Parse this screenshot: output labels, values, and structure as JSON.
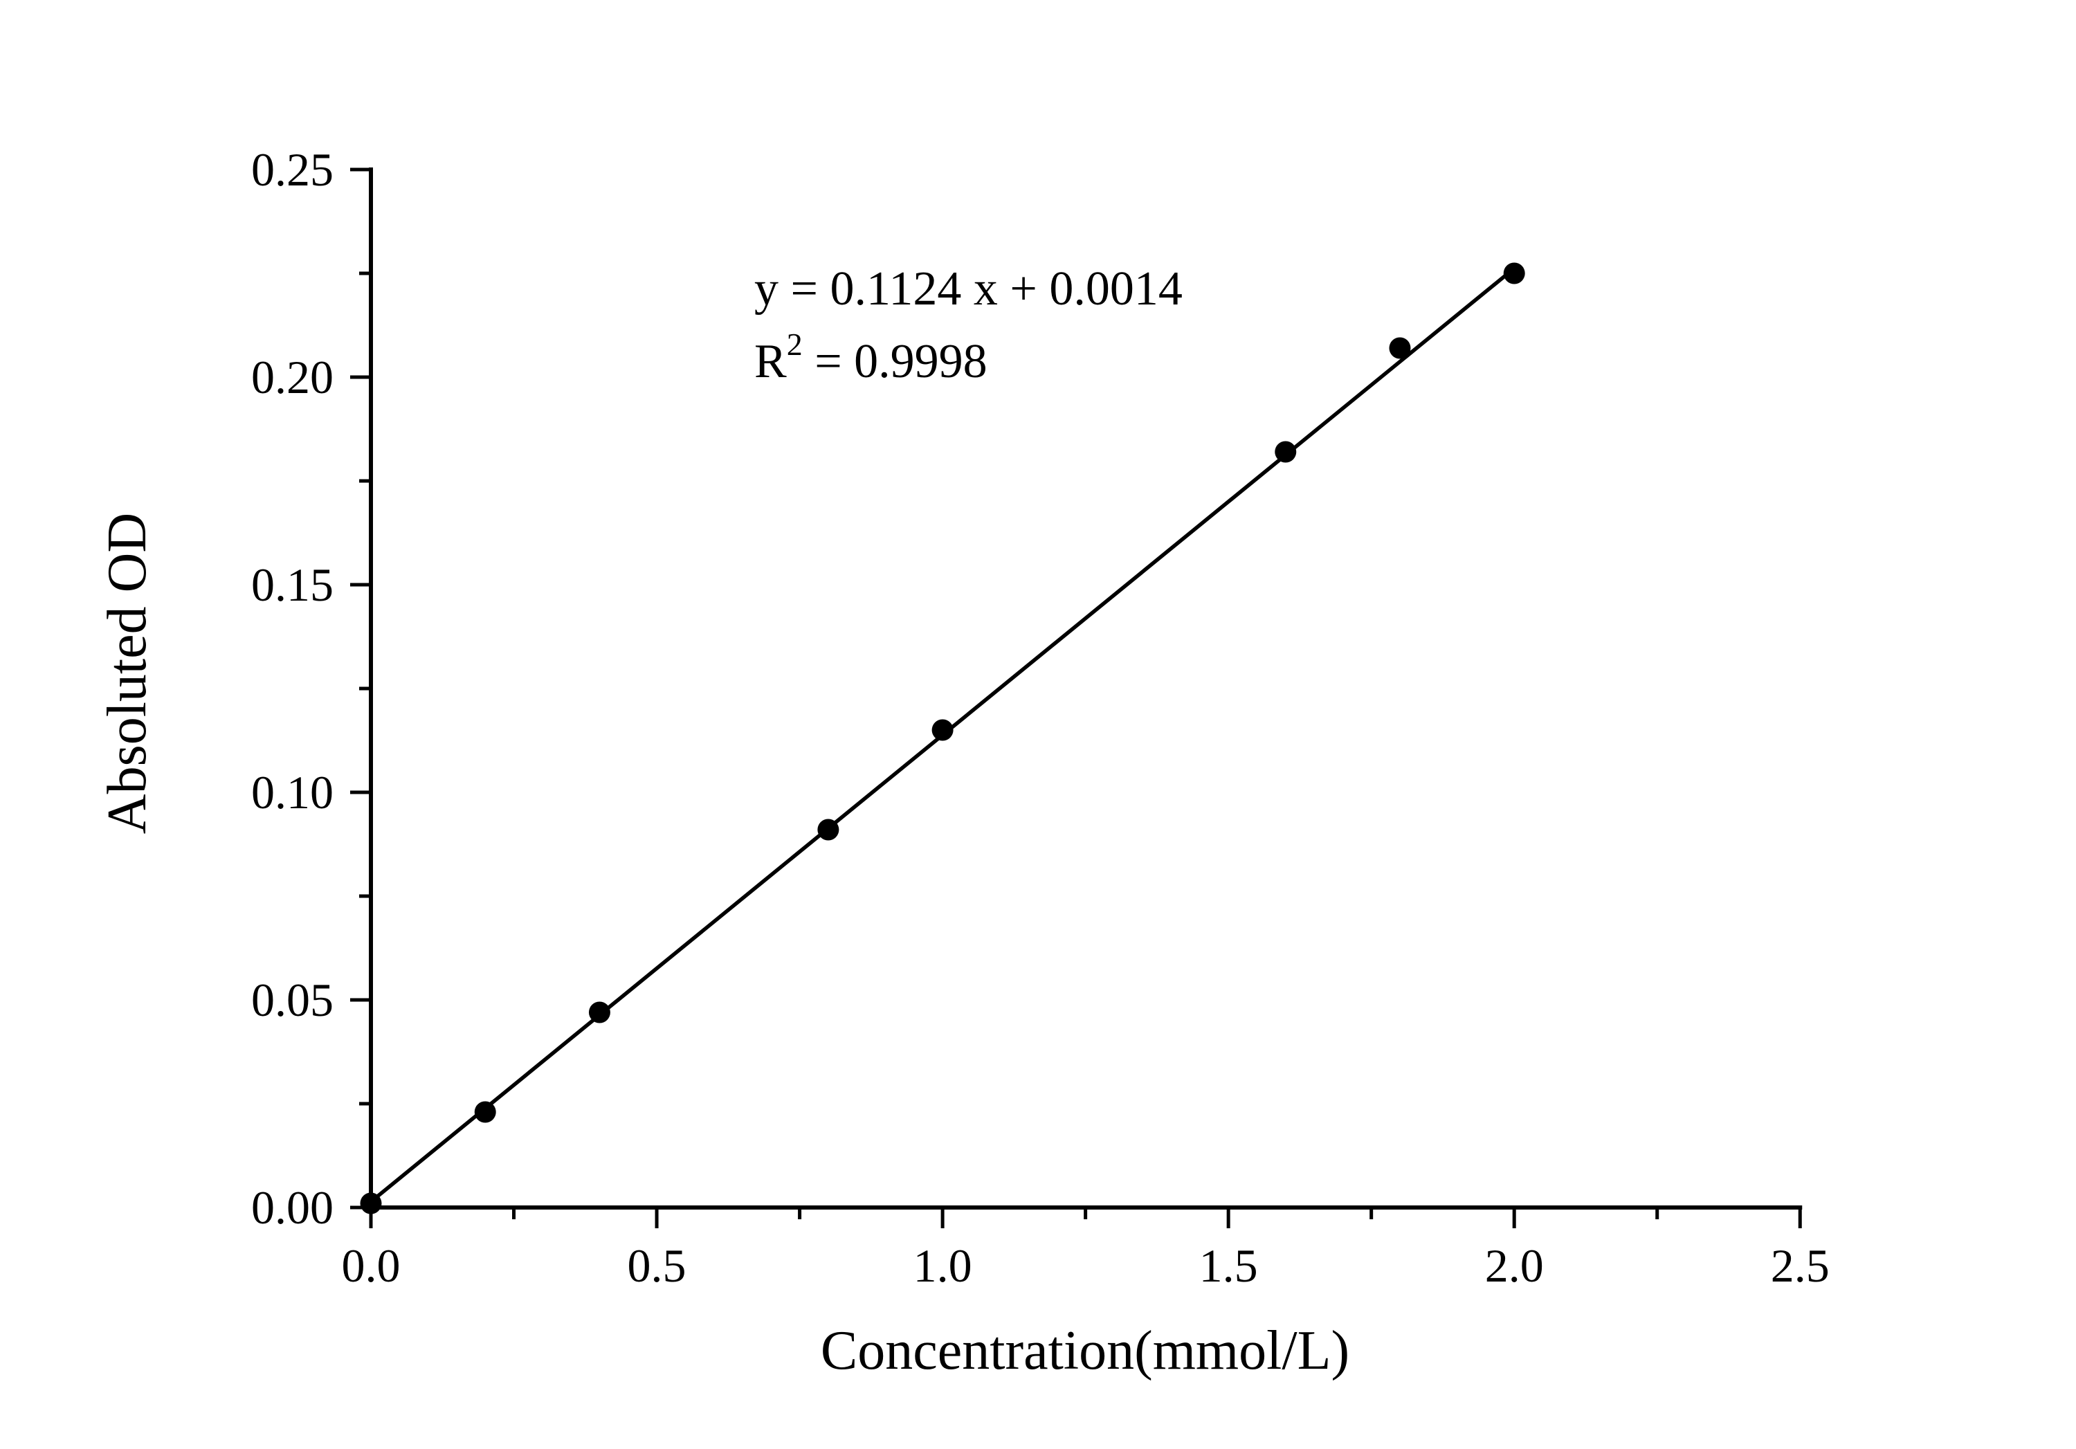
{
  "figure": {
    "background": "#ffffff",
    "foreground": "#000000"
  },
  "chart_data": {
    "type": "scatter",
    "title": "",
    "xlabel": "Concentration(mmol/L)",
    "ylabel": "Absoluted OD",
    "xlim": [
      0.0,
      2.5
    ],
    "ylim": [
      0.0,
      0.25
    ],
    "grid": false,
    "legend": "none",
    "x_major_ticks": {
      "values": [
        0.0,
        0.5,
        1.0,
        1.5,
        2.0,
        2.5
      ],
      "labels": [
        "0.0",
        "0.5",
        "1.0",
        "1.5",
        "2.0",
        "2.5"
      ]
    },
    "x_minor_step": 0.25,
    "y_major_ticks": {
      "values": [
        0.0,
        0.05,
        0.1,
        0.15,
        0.2,
        0.25
      ],
      "labels": [
        "0.00",
        "0.05",
        "0.10",
        "0.15",
        "0.20",
        "0.25"
      ]
    },
    "y_minor_step": 0.025,
    "series": [
      {
        "name": "standard-points",
        "marker": "filled-circle",
        "color": "#000000",
        "points": [
          [
            0.0,
            0.001
          ],
          [
            0.2,
            0.023
          ],
          [
            0.4,
            0.047
          ],
          [
            0.8,
            0.091
          ],
          [
            1.0,
            0.115
          ],
          [
            1.6,
            0.182
          ],
          [
            1.8,
            0.207
          ],
          [
            2.0,
            0.225
          ]
        ]
      }
    ],
    "fit": {
      "slope": 0.1124,
      "intercept": 0.0014,
      "r_squared": 0.9998,
      "x_range": [
        0.0,
        2.0
      ],
      "color": "#000000"
    },
    "annotation": {
      "line1": "y = 0.1124 x + 0.0014",
      "line2_base": "R",
      "line2_superscript": "2",
      "line2_rest": " = 0.9998"
    }
  }
}
